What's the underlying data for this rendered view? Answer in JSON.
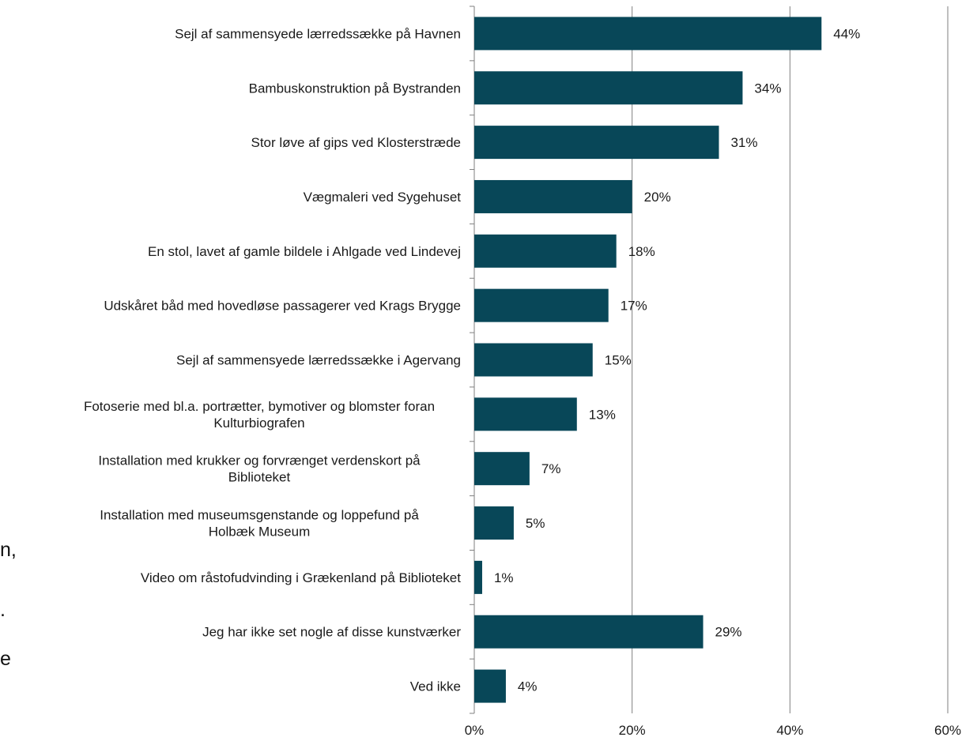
{
  "chart_data": {
    "type": "bar",
    "orientation": "horizontal",
    "categories": [
      [
        "Sejl af sammensyede lærredssække på Havnen"
      ],
      [
        "Bambuskonstruktion på Bystranden"
      ],
      [
        "Stor løve af gips ved Klosterstræde"
      ],
      [
        "Vægmaleri ved Sygehuset"
      ],
      [
        "En stol, lavet af gamle bildele i Ahlgade ved Lindevej"
      ],
      [
        "Udskåret båd med hovedløse passagerer ved Krags Brygge"
      ],
      [
        "Sejl af sammensyede lærredssække i Agervang"
      ],
      [
        "Fotoserie med bl.a. portrætter, bymotiver og blomster foran",
        "Kulturbiografen"
      ],
      [
        "Installation med krukker og forvrænget verdenskort på",
        "Biblioteket"
      ],
      [
        "Installation med museumsgenstande og loppefund på",
        "Holbæk Museum"
      ],
      [
        "Video om råstofudvinding i Grækenland på Biblioteket"
      ],
      [
        "Jeg har ikke set nogle af disse kunstværker"
      ],
      [
        "Ved ikke"
      ]
    ],
    "values": [
      44,
      34,
      31,
      20,
      18,
      17,
      15,
      13,
      7,
      5,
      1,
      29,
      4
    ],
    "value_labels": [
      "44%",
      "34%",
      "31%",
      "20%",
      "18%",
      "17%",
      "15%",
      "13%",
      "7%",
      "5%",
      "1%",
      "29%",
      "4%"
    ],
    "xlim": [
      0,
      60
    ],
    "xticks": [
      0,
      20,
      40,
      60
    ],
    "xtick_labels": [
      "0%",
      "20%",
      "40%",
      "60%"
    ],
    "grid": true,
    "bar_color": "#084758",
    "title": "",
    "xlabel": "",
    "ylabel": ""
  },
  "background_fragments": [
    "n,",
    ".",
    "e"
  ]
}
